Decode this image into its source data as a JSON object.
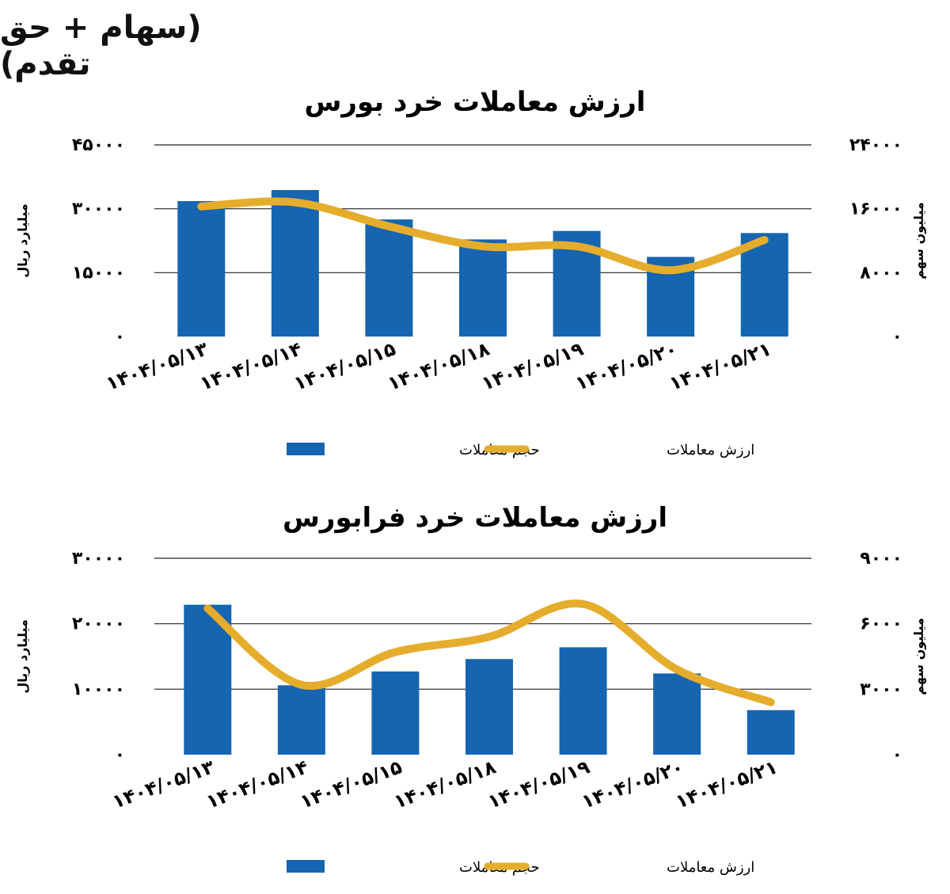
{
  "page_title": "(سهام + حق تقدم)",
  "chart_data": [
    {
      "type": "bar",
      "title": "ارزش معاملات خرد بورس",
      "categories": [
        "۱۴۰۴/۰۵/۱۳",
        "۱۴۰۴/۰۵/۱۴",
        "۱۴۰۴/۰۵/۱۵",
        "۱۴۰۴/۰۵/۱۸",
        "۱۴۰۴/۰۵/۱۹",
        "۱۴۰۴/۰۵/۲۰",
        "۱۴۰۴/۰۵/۲۱"
      ],
      "ylabel_left": "میلیارد ریال",
      "ylabel_right": "میلیون سهم",
      "ylim_left": [
        0,
        45000
      ],
      "yticks_left": [
        0,
        15000,
        30000,
        45000
      ],
      "ytick_labels_left": [
        "۰",
        "۱۵۰۰۰",
        "۳۰۰۰۰",
        "۴۵۰۰۰"
      ],
      "ylim_right": [
        0,
        24000
      ],
      "yticks_right": [
        0,
        8000,
        16000,
        24000
      ],
      "ytick_labels_right": [
        "۰",
        "۸۰۰۰",
        "۱۶۰۰۰",
        "۲۴۰۰۰"
      ],
      "grid": true,
      "legend_position": "bottom",
      "series": [
        {
          "name": "حجم معاملات",
          "type": "bar",
          "axis": "left",
          "color": "#1565b0",
          "values": [
            31800,
            34400,
            27500,
            22800,
            24800,
            18700,
            24300
          ]
        },
        {
          "name": "ارزش معاملات",
          "type": "line",
          "axis": "right",
          "color": "#e6ac2c",
          "values": [
            16300,
            16800,
            13800,
            11300,
            11300,
            8300,
            12100
          ]
        }
      ]
    },
    {
      "type": "bar",
      "title": "ارزش معاملات خرد فرابورس",
      "categories": [
        "۱۴۰۴/۰۵/۱۳",
        "۱۴۰۴/۰۵/۱۴",
        "۱۴۰۴/۰۵/۱۵",
        "۱۴۰۴/۰۵/۱۸",
        "۱۴۰۴/۰۵/۱۹",
        "۱۴۰۴/۰۵/۲۰",
        "۱۴۰۴/۰۵/۲۱"
      ],
      "ylabel_left": "میلیارد ریال",
      "ylabel_right": "میلیون سهم",
      "ylim_left": [
        0,
        30000
      ],
      "yticks_left": [
        0,
        10000,
        20000,
        30000
      ],
      "ytick_labels_left": [
        "۰",
        "۱۰۰۰۰",
        "۲۰۰۰۰",
        "۳۰۰۰۰"
      ],
      "ylim_right": [
        0,
        9000
      ],
      "yticks_right": [
        0,
        3000,
        6000,
        9000
      ],
      "ytick_labels_right": [
        "۰",
        "۳۰۰۰",
        "۶۰۰۰",
        "۹۰۰۰"
      ],
      "grid": true,
      "legend_position": "bottom",
      "series": [
        {
          "name": "حجم معاملات",
          "type": "bar",
          "axis": "left",
          "color": "#1565b0",
          "values": [
            22900,
            10600,
            12700,
            14600,
            16400,
            12400,
            6800
          ]
        },
        {
          "name": "ارزش معاملات",
          "type": "line",
          "axis": "right",
          "color": "#e6ac2c",
          "values": [
            6700,
            3200,
            4700,
            5400,
            6900,
            3900,
            2400
          ]
        }
      ]
    }
  ]
}
